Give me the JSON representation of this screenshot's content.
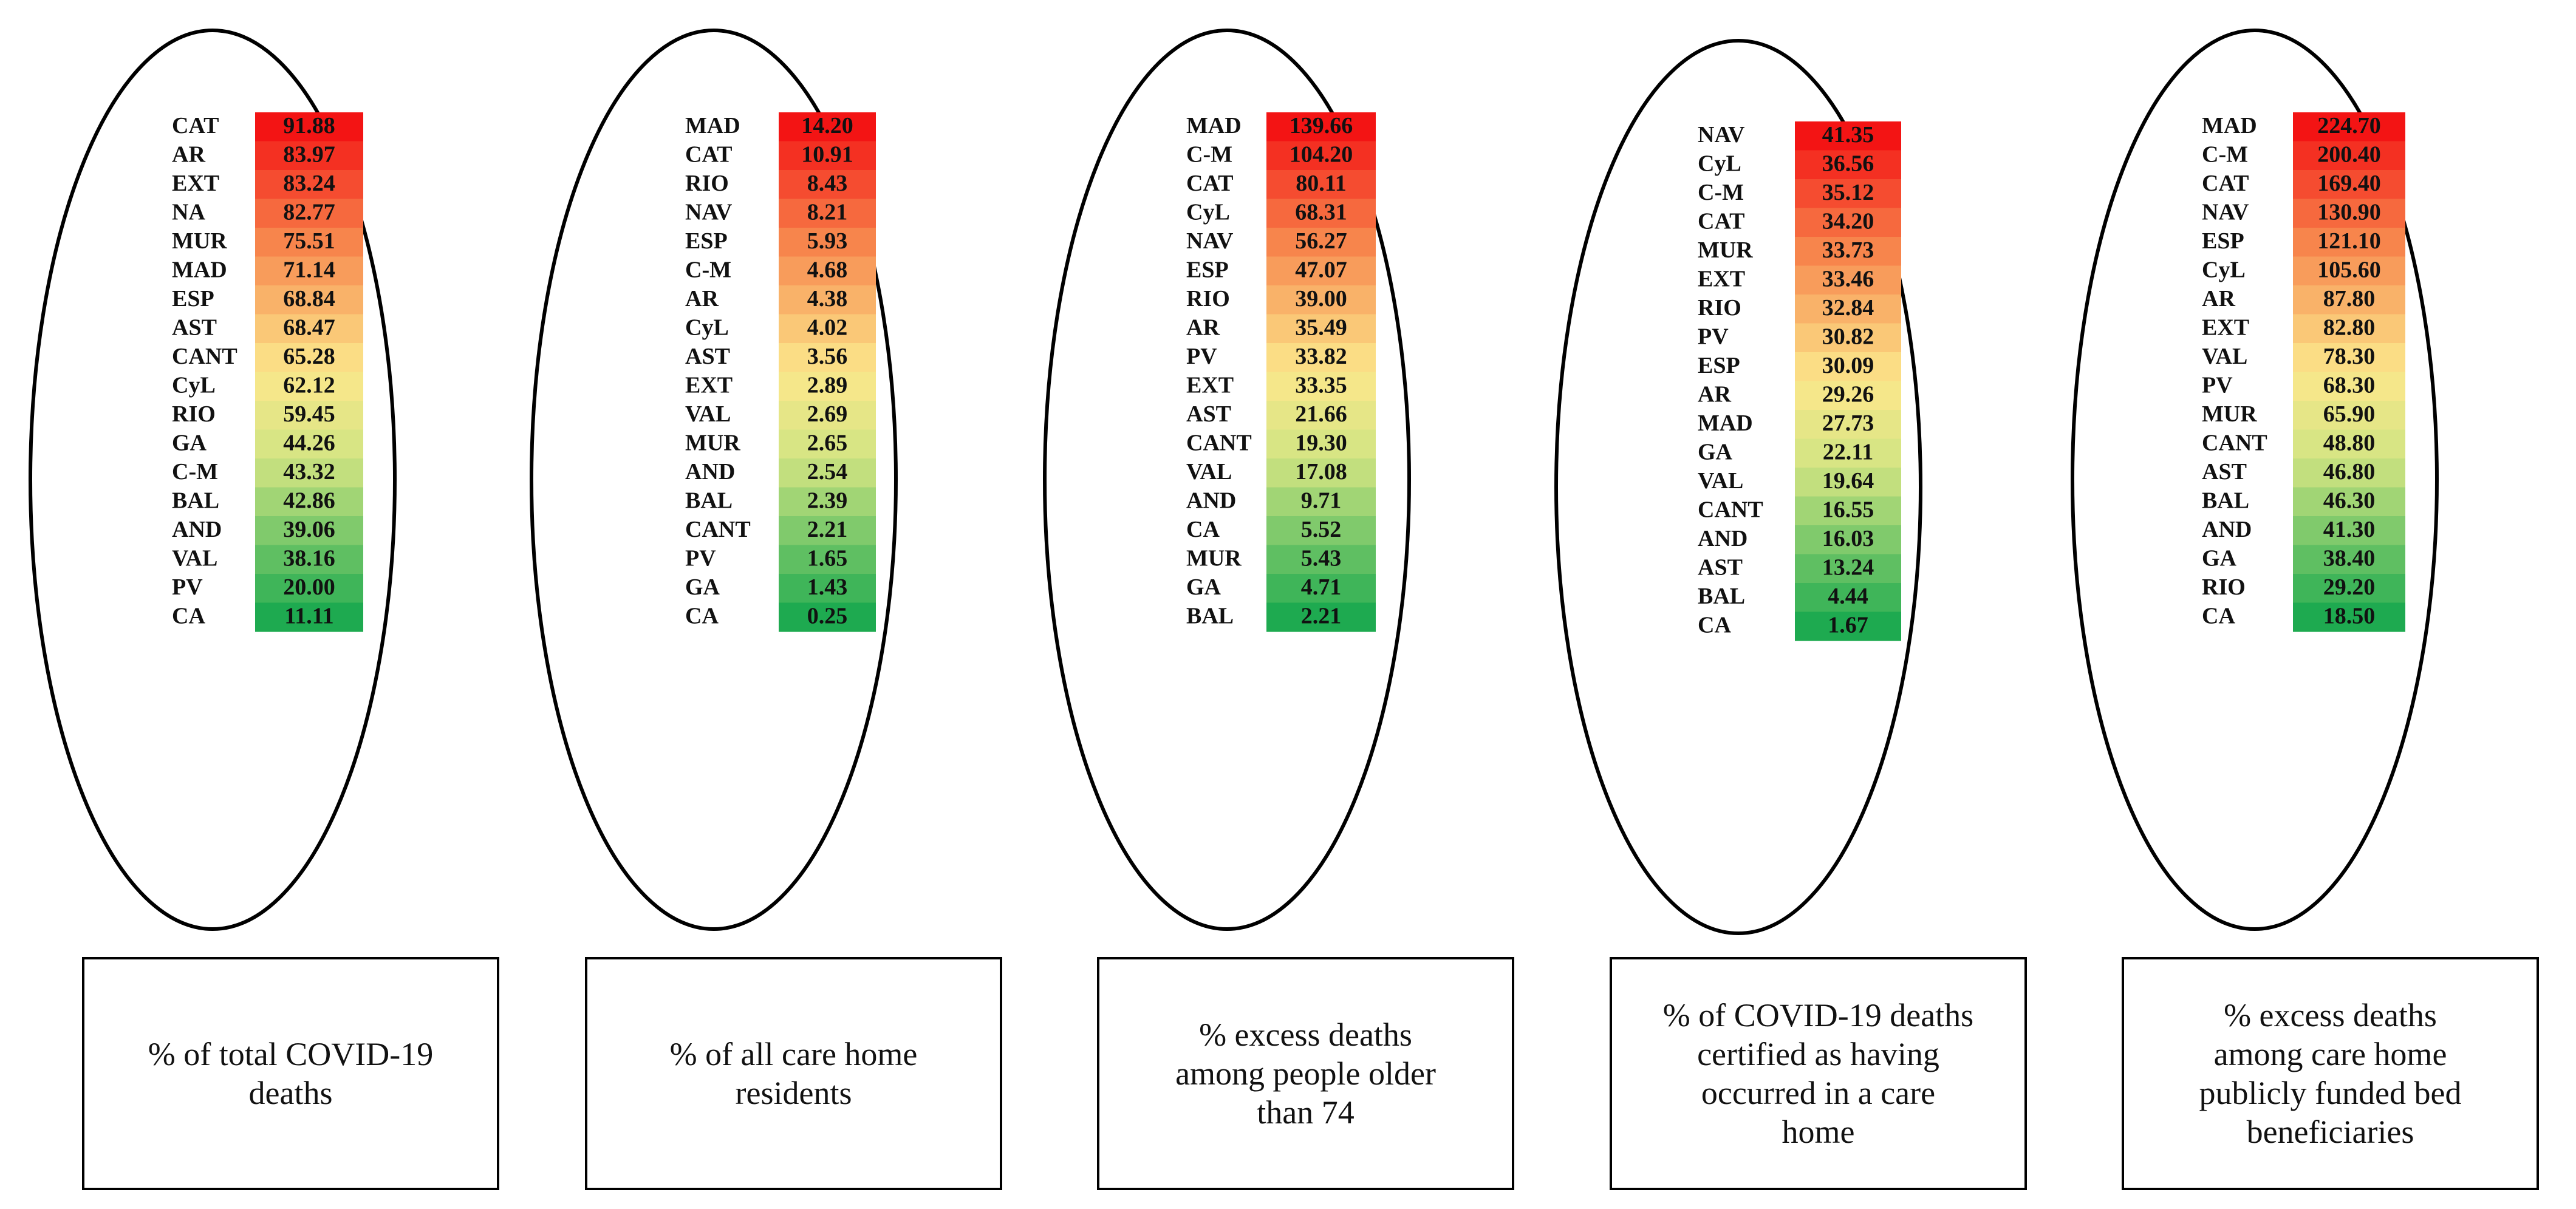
{
  "chart_data": [
    {
      "type": "table",
      "caption": [
        "% of total COVID-19",
        "deaths"
      ],
      "categories": [
        "CAT",
        "AR",
        "EXT",
        "NA",
        "MUR",
        "MAD",
        "ESP",
        "AST",
        "CANT",
        "CyL",
        "RIO",
        "GA",
        "C-M",
        "BAL",
        "AND",
        "VAL",
        "PV",
        "CA"
      ],
      "values": [
        "91.88",
        "83.97",
        "83.24",
        "82.77",
        "75.51",
        "71.14",
        "68.84",
        "68.47",
        "65.28",
        "62.12",
        "59.45",
        "44.26",
        "43.32",
        "42.86",
        "39.06",
        "38.16",
        "20.00",
        "11.11"
      ]
    },
    {
      "type": "table",
      "caption": [
        "% of all care home",
        "residents"
      ],
      "categories": [
        "MAD",
        "CAT",
        "RIO",
        "NAV",
        "ESP",
        "C-M",
        "AR",
        "CyL",
        "AST",
        "EXT",
        "VAL",
        "MUR",
        "AND",
        "BAL",
        "CANT",
        "PV",
        "GA",
        "CA"
      ],
      "values": [
        "14.20",
        "10.91",
        "8.43",
        "8.21",
        "5.93",
        "4.68",
        "4.38",
        "4.02",
        "3.56",
        "2.89",
        "2.69",
        "2.65",
        "2.54",
        "2.39",
        "2.21",
        "1.65",
        "1.43",
        "0.25"
      ]
    },
    {
      "type": "table",
      "caption": [
        "% excess deaths",
        "among people older",
        "than 74"
      ],
      "categories": [
        "MAD",
        "C-M",
        "CAT",
        "CyL",
        "NAV",
        "ESP",
        "RIO",
        "AR",
        "PV",
        "EXT",
        "AST",
        "CANT",
        "VAL",
        "AND",
        "CA",
        "MUR",
        "GA",
        "BAL"
      ],
      "values": [
        "139.66",
        "104.20",
        "80.11",
        "68.31",
        "56.27",
        "47.07",
        "39.00",
        "35.49",
        "33.82",
        "33.35",
        "21.66",
        "19.30",
        "17.08",
        "9.71",
        "5.52",
        "5.43",
        "4.71",
        "2.21"
      ]
    },
    {
      "type": "table",
      "caption": [
        "% of COVID-19 deaths",
        "certified as having",
        "occurred in a care",
        "home"
      ],
      "categories": [
        "NAV",
        "CyL",
        "C-M",
        "CAT",
        "MUR",
        "EXT",
        "RIO",
        "PV",
        "ESP",
        "AR",
        "MAD",
        "GA",
        "VAL",
        "CANT",
        "AND",
        "AST",
        "BAL",
        "CA"
      ],
      "values": [
        "41.35",
        "36.56",
        "35.12",
        "34.20",
        "33.73",
        "33.46",
        "32.84",
        "30.82",
        "30.09",
        "29.26",
        "27.73",
        "22.11",
        "19.64",
        "16.55",
        "16.03",
        "13.24",
        "4.44",
        "1.67"
      ]
    },
    {
      "type": "table",
      "caption": [
        "% excess deaths",
        "among care home",
        "publicly funded bed",
        "beneficiaries"
      ],
      "categories": [
        "MAD",
        "C-M",
        "CAT",
        "NAV",
        "ESP",
        "CyL",
        "AR",
        "EXT",
        "VAL",
        "PV",
        "MUR",
        "CANT",
        "AST",
        "BAL",
        "AND",
        "GA",
        "RIO",
        "CA"
      ],
      "values": [
        "224.70",
        "200.40",
        "169.40",
        "130.90",
        "121.10",
        "105.60",
        "87.80",
        "82.80",
        "78.30",
        "68.30",
        "65.90",
        "48.80",
        "46.80",
        "46.30",
        "41.30",
        "38.40",
        "29.20",
        "18.50"
      ]
    }
  ]
}
